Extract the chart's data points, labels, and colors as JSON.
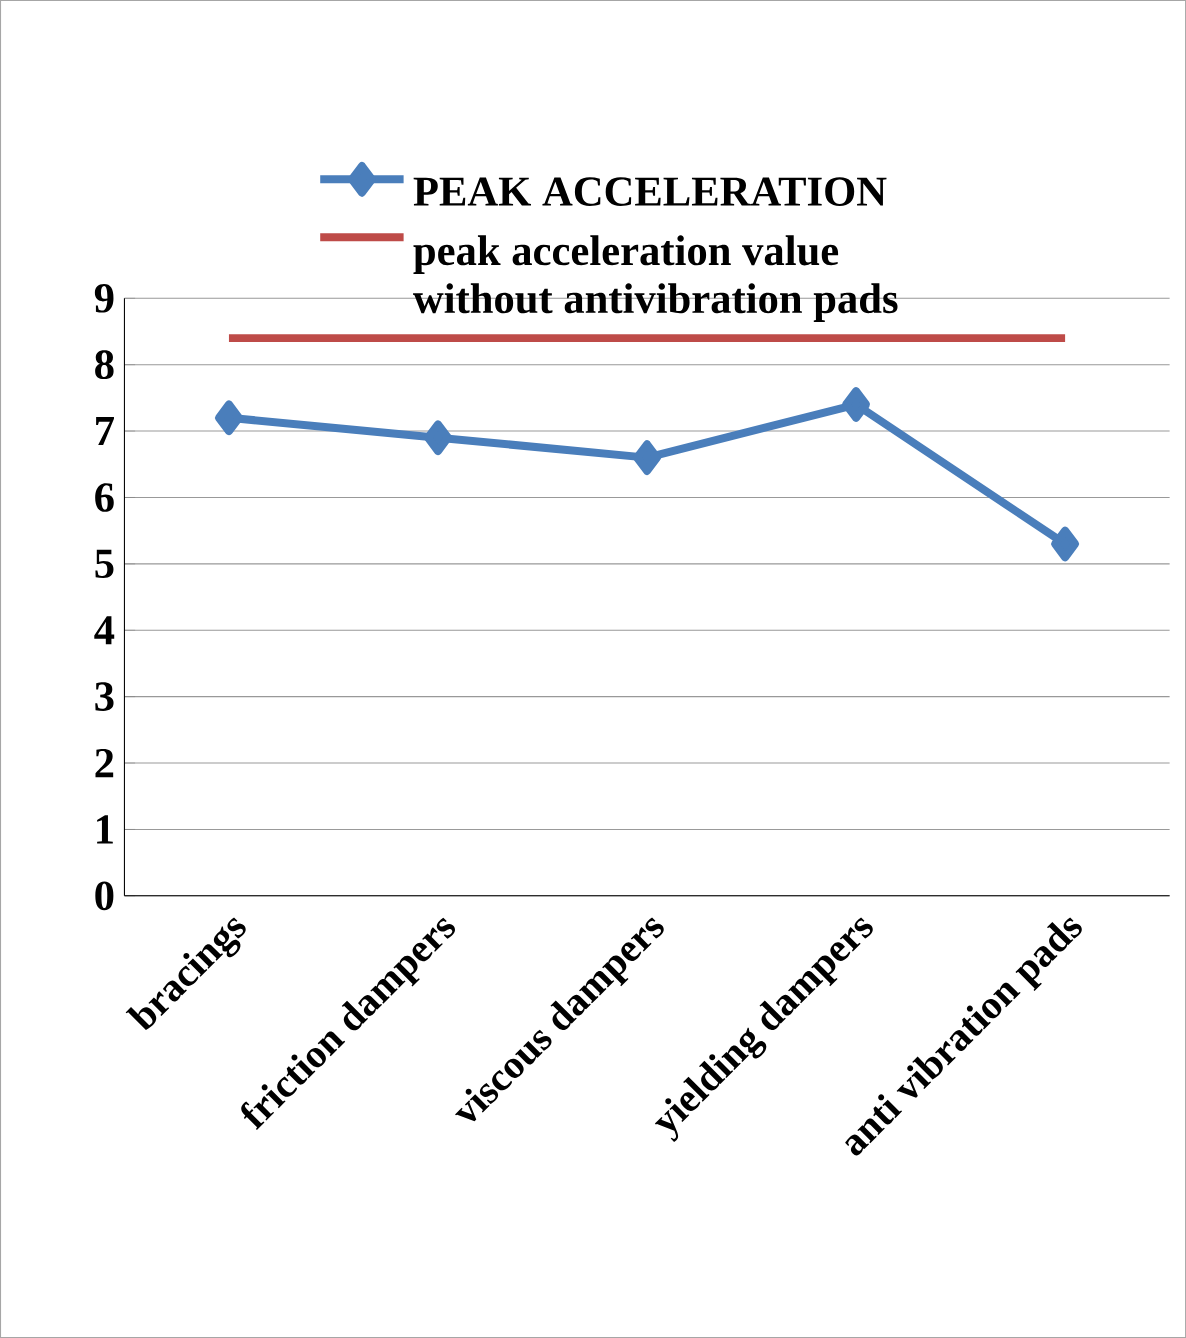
{
  "chart_data": {
    "type": "line",
    "categories": [
      "bracings",
      "friction dampers",
      "viscous dampers",
      "yielding dampers",
      "anti vibration pads"
    ],
    "series": [
      {
        "name": "PEAK ACCELERATION",
        "color": "#4a7ebb",
        "marker": "diamond",
        "values": [
          7.2,
          6.9,
          6.6,
          7.4,
          5.3
        ]
      },
      {
        "name": "peak acceleration value without antivibration pads",
        "color": "#be4b48",
        "marker": "none",
        "values": [
          8.4,
          8.4,
          8.4,
          8.4,
          8.4
        ]
      }
    ],
    "ylim": [
      0,
      9
    ],
    "yticks": [
      0,
      1,
      2,
      3,
      4,
      5,
      6,
      7,
      8,
      9
    ],
    "grid": "y",
    "legend": "top"
  }
}
